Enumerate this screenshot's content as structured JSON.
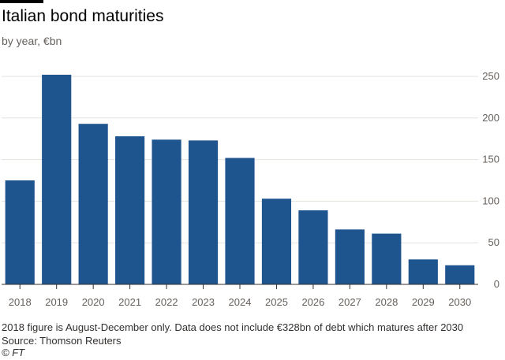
{
  "header": {
    "title": "Italian bond maturities",
    "subtitle": "by year, €bn"
  },
  "footer": {
    "note": "2018 figure is August-December only. Data does not include €328bn of debt which matures after 2030",
    "source": "Source: Thomson Reuters",
    "credit": "© FT"
  },
  "colors": {
    "bar": "#1e558f",
    "grid": "#e6e2dd",
    "axis": "#33302e"
  },
  "chart_data": {
    "type": "bar",
    "title": "Italian bond maturities",
    "subtitle": "by year, €bn",
    "categories": [
      "2018",
      "2019",
      "2020",
      "2021",
      "2022",
      "2023",
      "2024",
      "2025",
      "2026",
      "2027",
      "2028",
      "2029",
      "2030"
    ],
    "values": [
      125,
      252,
      193,
      178,
      174,
      173,
      152,
      103,
      89,
      66,
      61,
      30,
      23
    ],
    "ylim": [
      0,
      250
    ],
    "yticks": [
      0,
      50,
      100,
      150,
      200,
      250
    ],
    "y_axis_side": "right",
    "grid": true,
    "legend": "none"
  }
}
